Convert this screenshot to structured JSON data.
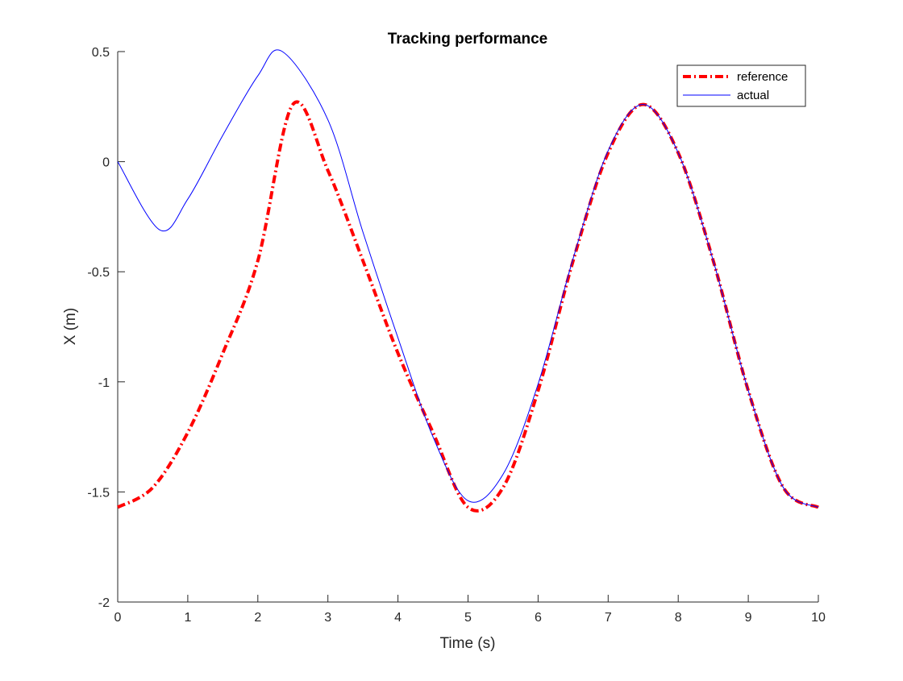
{
  "chart_data": {
    "type": "line",
    "title": "Tracking performance",
    "xlabel": "Time (s)",
    "ylabel": "X (m)",
    "xlim": [
      0,
      10
    ],
    "ylim": [
      -2,
      0.5
    ],
    "xticks": [
      "0",
      "1",
      "2",
      "3",
      "4",
      "5",
      "6",
      "7",
      "8",
      "9",
      "10"
    ],
    "yticks": [
      "-2",
      "-1.5",
      "-1",
      "-0.5",
      "0",
      "0.5"
    ],
    "grid": false,
    "legend_position": "top-right",
    "series": [
      {
        "name": "reference",
        "color": "#ff0000",
        "style": "dash-dot",
        "x": [
          0,
          0.5,
          1,
          1.5,
          2,
          2.5,
          3,
          3.5,
          4,
          4.5,
          5,
          5.5,
          6,
          6.5,
          7,
          7.5,
          8,
          8.5,
          9,
          9.5,
          10
        ],
        "y": [
          -1.57,
          -1.48,
          -1.23,
          -0.87,
          -0.45,
          0.26,
          -0.04,
          -0.45,
          -0.87,
          -1.23,
          -1.57,
          -1.48,
          -1.04,
          -0.45,
          0.04,
          0.26,
          0.04,
          -0.45,
          -1.04,
          -1.48,
          -1.57
        ]
      },
      {
        "name": "actual",
        "color": "#0000ff",
        "style": "solid",
        "x": [
          0,
          0.6,
          1,
          1.5,
          2,
          2.35,
          3,
          3.5,
          4,
          4.5,
          5,
          5.5,
          6,
          6.5,
          7,
          7.5,
          8,
          8.5,
          9,
          9.5,
          10
        ],
        "y": [
          0,
          -0.31,
          -0.17,
          0.12,
          0.39,
          0.5,
          0.19,
          -0.32,
          -0.8,
          -1.25,
          -1.54,
          -1.42,
          -1.01,
          -0.44,
          0.05,
          0.26,
          0.04,
          -0.45,
          -1.04,
          -1.48,
          -1.57
        ]
      }
    ]
  }
}
